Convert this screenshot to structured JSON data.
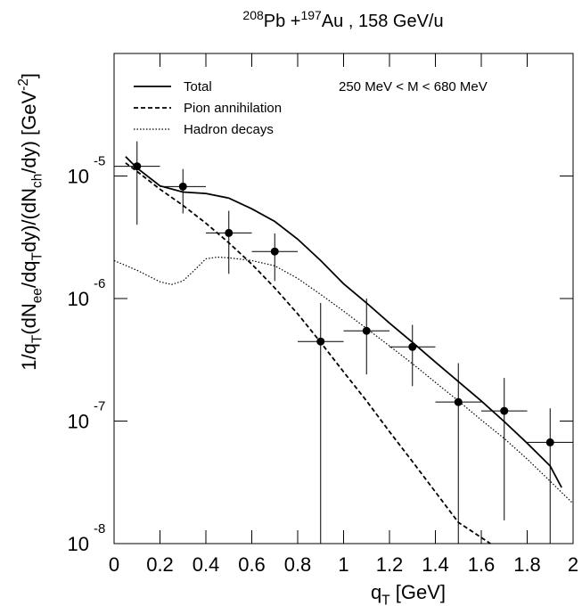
{
  "chart_data": {
    "type": "line",
    "title_parts": [
      {
        "text": "208",
        "style": "sup"
      },
      {
        "text": "Pb +"
      },
      {
        "text": "197",
        "style": "sup"
      },
      {
        "text": "Au , 158 GeV/u"
      }
    ],
    "x_label_parts": [
      {
        "text": "q"
      },
      {
        "text": "T",
        "style": "sub"
      },
      {
        "text": " [GeV]"
      }
    ],
    "y_label_parts": [
      {
        "text": "1/q"
      },
      {
        "text": "T",
        "style": "sub"
      },
      {
        "text": "(dN"
      },
      {
        "text": "ee",
        "style": "sub"
      },
      {
        "text": "/dq"
      },
      {
        "text": "T",
        "style": "sub"
      },
      {
        "text": "dy)/(dN"
      },
      {
        "text": "ch",
        "style": "sub"
      },
      {
        "text": "/dy)   [GeV"
      },
      {
        "text": "-2",
        "style": "sup"
      },
      {
        "text": "]"
      }
    ],
    "annotation": "250 MeV < M < 680 MeV",
    "log_y": true,
    "xlim": [
      0,
      2
    ],
    "ylim": [
      1e-08,
      0.0001
    ],
    "xticks": [
      0,
      0.2,
      0.4,
      0.6,
      0.8,
      1,
      1.2,
      1.4,
      1.6,
      1.8,
      2
    ],
    "yticks": [
      {
        "value": 1e-08,
        "label": "10",
        "exponent": "-8"
      },
      {
        "value": 1e-07,
        "label": "10",
        "exponent": "-7"
      },
      {
        "value": 1e-06,
        "label": "10",
        "exponent": "-6"
      },
      {
        "value": 1e-05,
        "label": "10",
        "exponent": "-5"
      }
    ],
    "series": [
      {
        "name": "Total",
        "style": "solid",
        "color": "#000000",
        "x": [
          0.05,
          0.1,
          0.2,
          0.3,
          0.4,
          0.5,
          0.6,
          0.7,
          0.8,
          0.9,
          1.0,
          1.1,
          1.2,
          1.3,
          1.4,
          1.5,
          1.6,
          1.7,
          1.8,
          1.9,
          1.95
        ],
        "values": [
          1.44e-05,
          1.16e-05,
          8.3e-06,
          7.4e-06,
          7.2e-06,
          6.6e-06,
          5.4e-06,
          4.26e-06,
          3.05e-06,
          2.04e-06,
          1.32e-06,
          9.2e-07,
          6.3e-07,
          4.39e-07,
          3.03e-07,
          2.1e-07,
          1.46e-07,
          9.9e-08,
          6.6e-08,
          4.3e-08,
          2.87e-08
        ]
      },
      {
        "name": "Pion annihilation",
        "style": "dashed",
        "color": "#000000",
        "x": [
          0.05,
          0.1,
          0.2,
          0.3,
          0.4,
          0.5,
          0.6,
          0.7,
          0.8,
          0.9,
          1.0,
          1.1,
          1.2,
          1.3,
          1.4,
          1.5,
          1.64
        ],
        "values": [
          1.28e-05,
          1.09e-05,
          7.8e-06,
          5.75e-06,
          4.12e-06,
          2.85e-06,
          1.91e-06,
          1.22e-06,
          7.5e-07,
          4.39e-07,
          2.52e-07,
          1.46e-07,
          8.2e-08,
          4.67e-08,
          2.64e-08,
          1.49e-08,
          1e-08
        ]
      },
      {
        "name": "Hadron decays",
        "style": "dotted",
        "color": "#000000",
        "x": [
          0,
          0.1,
          0.2,
          0.25,
          0.3,
          0.35,
          0.4,
          0.45,
          0.5,
          0.6,
          0.7,
          0.8,
          0.9,
          1.0,
          1.1,
          1.2,
          1.3,
          1.4,
          1.5,
          1.6,
          1.7,
          1.8,
          1.9,
          2.0
        ],
        "values": [
          2.04e-06,
          1.7e-06,
          1.37e-06,
          1.3e-06,
          1.39e-06,
          1.7e-06,
          2.11e-06,
          2.18e-06,
          2.15e-06,
          2.04e-06,
          1.85e-06,
          1.46e-06,
          1.08e-06,
          7.9e-07,
          5.7e-07,
          4.1e-07,
          2.94e-07,
          2.07e-07,
          1.46e-07,
          1.02e-07,
          7.2e-08,
          4.9e-08,
          3.23e-08,
          2.12e-08
        ]
      }
    ],
    "points": {
      "color": "#000000",
      "x": [
        0.1,
        0.3,
        0.5,
        0.7,
        0.9,
        1.1,
        1.3,
        1.5,
        1.7,
        1.9
      ],
      "xerr": [
        0.1,
        0.1,
        0.1,
        0.1,
        0.1,
        0.1,
        0.1,
        0.1,
        0.1,
        0.1
      ],
      "values": [
        1.2e-05,
        8.2e-06,
        3.43e-06,
        2.42e-06,
        4.46e-07,
        5.45e-07,
        4.03e-07,
        1.43e-07,
        1.21e-07,
        6.7e-08
      ],
      "y_low": [
        4e-06,
        4.95e-06,
        1.59e-06,
        1.39e-06,
        1e-08,
        2.4e-07,
        1.93e-07,
        1e-08,
        1.55e-08,
        1e-08
      ],
      "y_high": [
        1.92e-05,
        1.14e-05,
        5.2e-06,
        3.4e-06,
        9.2e-07,
        1e-06,
        6.1e-07,
        2.97e-07,
        2.25e-07,
        1.27e-07
      ]
    }
  }
}
